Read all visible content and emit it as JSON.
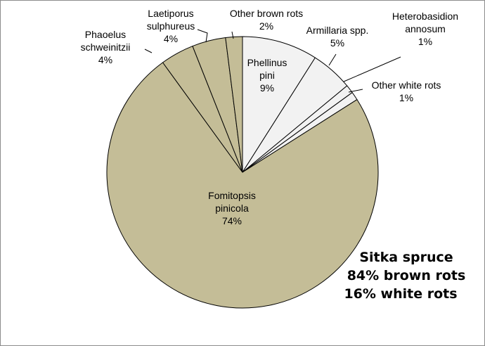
{
  "chart_data": {
    "type": "pie",
    "title": "",
    "start_angle_deg": 0,
    "direction": "clockwise",
    "slice_border_color": "#000000",
    "series": [
      {
        "name": "Phellinus pini",
        "label_lines": [
          "Phellinus",
          "pini"
        ],
        "value": 9,
        "label": "9%",
        "color": "#f2f2f2",
        "group": "white rots"
      },
      {
        "name": "Armillaria spp.",
        "label_lines": [
          "Armillaria spp."
        ],
        "value": 5,
        "label": "5%",
        "color": "#f2f2f2",
        "group": "white rots"
      },
      {
        "name": "Heterobasidion annosum",
        "label_lines": [
          "Heterobasidion",
          "annosum"
        ],
        "value": 1,
        "label": "1%",
        "color": "#f2f2f2",
        "group": "white rots"
      },
      {
        "name": "Other white rots",
        "label_lines": [
          "Other white rots"
        ],
        "value": 1,
        "label": "1%",
        "color": "#f2f2f2",
        "group": "white rots"
      },
      {
        "name": "Fomitopsis pinicola",
        "label_lines": [
          "Fomitopsis",
          "pinicola"
        ],
        "value": 74,
        "label": "74%",
        "color": "#c4bd97",
        "group": "brown rots"
      },
      {
        "name": "Phaoelus schweinitzii",
        "label_lines": [
          "Phaoelus",
          "schweinitzii"
        ],
        "value": 4,
        "label": "4%",
        "color": "#c4bd97",
        "group": "brown rots"
      },
      {
        "name": "Laetiporus sulphureus",
        "label_lines": [
          "Laetiporus",
          "sulphureus"
        ],
        "value": 4,
        "label": "4%",
        "color": "#c4bd97",
        "group": "brown rots"
      },
      {
        "name": "Other brown rots",
        "label_lines": [
          "Other brown rots"
        ],
        "value": 2,
        "label": "2%",
        "color": "#c4bd97",
        "group": "brown rots"
      }
    ],
    "annotation": [
      "Sitka spruce",
      "84% brown rots",
      "16% white rots"
    ]
  }
}
